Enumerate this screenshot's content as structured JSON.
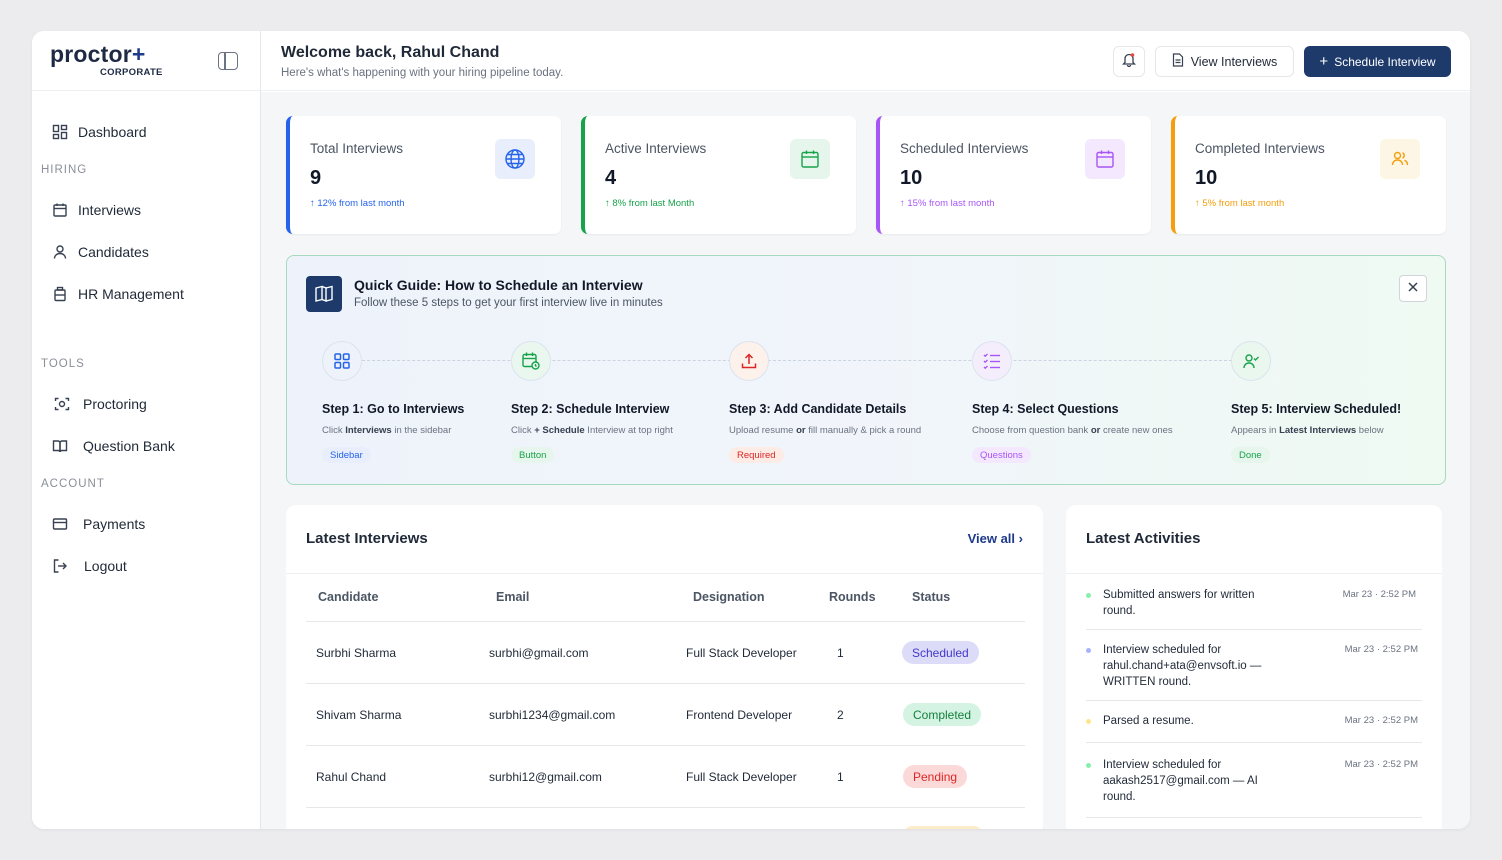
{
  "brand": {
    "logo_main": "proctor",
    "logo_plus": "+",
    "logo_sub": "CORPORATE"
  },
  "sidebar": {
    "items": [
      {
        "label": "Dashboard",
        "icon": "grid-icon"
      },
      {
        "label": "Interviews",
        "icon": "calendar-icon"
      },
      {
        "label": "Candidates",
        "icon": "user-icon"
      },
      {
        "label": "HR Management",
        "icon": "briefcase-icon"
      },
      {
        "label": "Proctoring",
        "icon": "camera-icon"
      },
      {
        "label": "Question Bank",
        "icon": "book-icon"
      },
      {
        "label": "Payments",
        "icon": "card-icon"
      },
      {
        "label": "Logout",
        "icon": "logout-icon"
      }
    ],
    "sections": [
      "HIRING",
      "TOOLS",
      "ACCOUNT"
    ]
  },
  "header": {
    "welcome": "Welcome back, Rahul Chand",
    "subtitle": "Here's what's happening with your hiring pipeline today.",
    "view_interviews": "View Interviews",
    "schedule_interview": "Schedule Interview"
  },
  "stats": [
    {
      "label": "Total Interviews",
      "value": "9",
      "trend": "12% from last month",
      "color": "#2563eb"
    },
    {
      "label": "Active Interviews",
      "value": "4",
      "trend": "8% from last Month",
      "color": "#16a34a"
    },
    {
      "label": "Scheduled Interviews",
      "value": "10",
      "trend": "15% from last month",
      "color": "#a855f7"
    },
    {
      "label": "Completed Interviews",
      "value": "10",
      "trend": "5% from last month",
      "color": "#f59e0b"
    }
  ],
  "guide": {
    "title": "Quick Guide: How to Schedule an Interview",
    "subtitle": "Follow these 5 steps to get your first interview live in minutes",
    "steps": [
      {
        "title": "Step 1: Go to Interviews",
        "desc_a": "Click ",
        "desc_b": "Interviews",
        "desc_c": " in the sidebar",
        "tag": "Sidebar"
      },
      {
        "title": "Step 2: Schedule Interview",
        "desc_a": "Click ",
        "desc_b": "+ Schedule",
        "desc_c": " Interview at top right",
        "tag": "Button"
      },
      {
        "title": "Step 3: Add Candidate Details",
        "desc_a": "Upload resume ",
        "desc_b": "or",
        "desc_c": " fill manually & pick a round",
        "tag": "Required"
      },
      {
        "title": "Step 4: Select Questions",
        "desc_a": "Choose from question bank ",
        "desc_b": "or",
        "desc_c": " create new ones",
        "tag": "Questions"
      },
      {
        "title": "Step 5: Interview Scheduled!",
        "desc_a": "Appears in ",
        "desc_b": "Latest Interviews",
        "desc_c": " below",
        "tag": "Done"
      }
    ]
  },
  "interviews": {
    "title": "Latest Interviews",
    "view_all": "View all",
    "columns": [
      "Candidate",
      "Email",
      "Designation",
      "Rounds",
      "Status"
    ],
    "rows": [
      {
        "candidate": "Surbhi Sharma",
        "email": "surbhi@gmail.com",
        "designation": "Full Stack Developer",
        "rounds": "1",
        "status": "Scheduled"
      },
      {
        "candidate": "Shivam Sharma",
        "email": "surbhi1234@gmail.com",
        "designation": "Frontend Developer",
        "rounds": "2",
        "status": "Completed"
      },
      {
        "candidate": "Rahul Chand",
        "email": "surbhi12@gmail.com",
        "designation": "Full Stack Developer",
        "rounds": "1",
        "status": "Pending"
      }
    ]
  },
  "activities": {
    "title": "Latest Activities",
    "items": [
      {
        "text": "Submitted answers for written round.",
        "time": "Mar 23 · 2:52 PM",
        "dot": "#86efac"
      },
      {
        "text": "Interview scheduled for rahul.chand+ata@envsoft.io — WRITTEN round.",
        "time": "Mar 23 · 2:52 PM",
        "dot": "#a5b4fc"
      },
      {
        "text": "Parsed a resume.",
        "time": "Mar 23 · 2:52 PM",
        "dot": "#fde68a"
      },
      {
        "text": "Interview scheduled for aakash2517@gmail.com — AI round.",
        "time": "Mar 23 · 2:52 PM",
        "dot": "#86efac"
      }
    ]
  }
}
